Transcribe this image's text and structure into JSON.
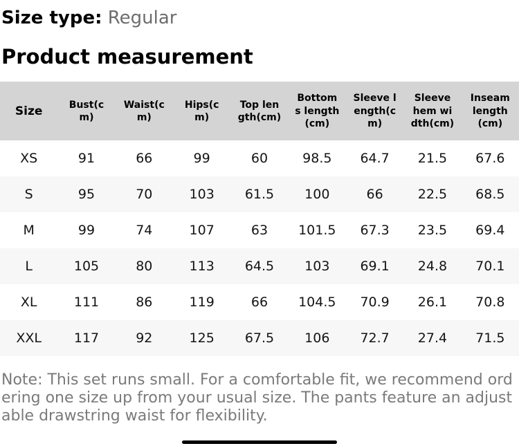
{
  "header": {
    "size_type_label": "Size type:",
    "size_type_value": "Regular",
    "section_title": "Product measurement"
  },
  "table": {
    "columns": [
      "Size",
      "Bust(cm)",
      "Waist(cm)",
      "Hips(cm)",
      "Top length(cm)",
      "Bottoms length(cm)",
      "Sleeve length(cm)",
      "Sleeve hem width(cm)",
      "Inseam length(cm)"
    ],
    "rows": [
      [
        "XS",
        "91",
        "66",
        "99",
        "60",
        "98.5",
        "64.7",
        "21.5",
        "67.6"
      ],
      [
        "S",
        "95",
        "70",
        "103",
        "61.5",
        "100",
        "66",
        "22.5",
        "68.5"
      ],
      [
        "M",
        "99",
        "74",
        "107",
        "63",
        "101.5",
        "67.3",
        "23.5",
        "69.4"
      ],
      [
        "L",
        "105",
        "80",
        "113",
        "64.5",
        "103",
        "69.1",
        "24.8",
        "70.1"
      ],
      [
        "XL",
        "111",
        "86",
        "119",
        "66",
        "104.5",
        "70.9",
        "26.1",
        "70.8"
      ],
      [
        "XXL",
        "117",
        "92",
        "125",
        "67.5",
        "106",
        "72.7",
        "27.4",
        "71.5"
      ]
    ]
  },
  "note": {
    "text": "Note: This set runs small. For a comfortable fit, we recommend ordering one size up from your usual size. The pants feature an adjustable drawstring waist for flexibility."
  },
  "colors": {
    "header_bg": "#d4d4d4",
    "alt_row_bg": "#f7f7f7",
    "muted_text": "#6d6d6d",
    "note_text": "#7a7a7a"
  }
}
